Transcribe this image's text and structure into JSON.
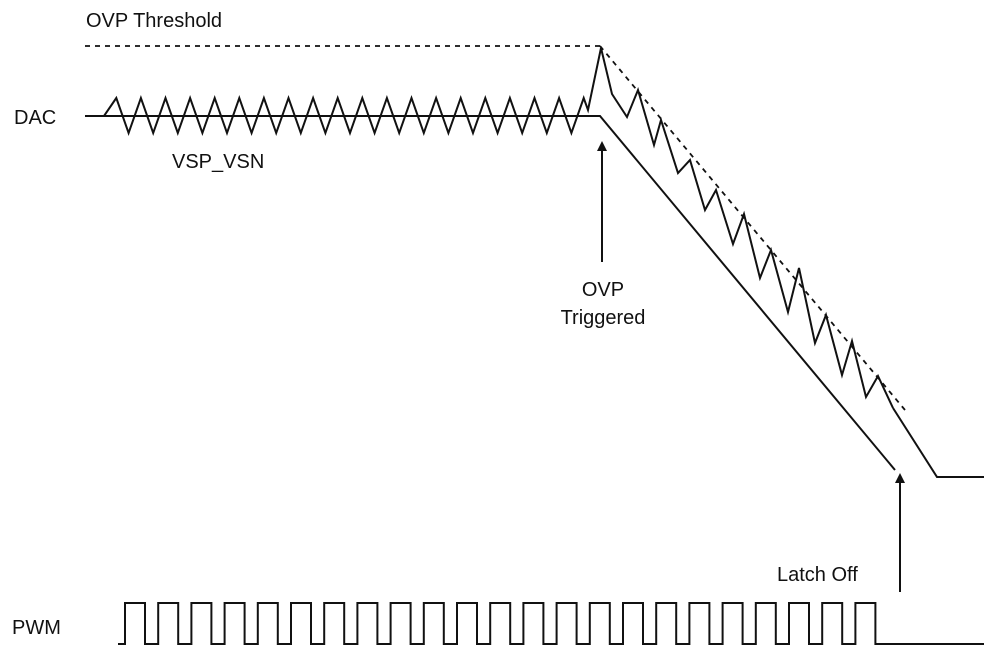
{
  "labels": {
    "ovp_threshold": "OVP Threshold",
    "dac": "DAC",
    "vsp_vsn": "VSP_VSN",
    "ovp_triggered_line1": "OVP",
    "ovp_triggered_line2": "Triggered",
    "latch_off": "Latch Off",
    "pwm": "PWM"
  },
  "colors": {
    "stroke": "#111111",
    "background": "#ffffff"
  }
}
